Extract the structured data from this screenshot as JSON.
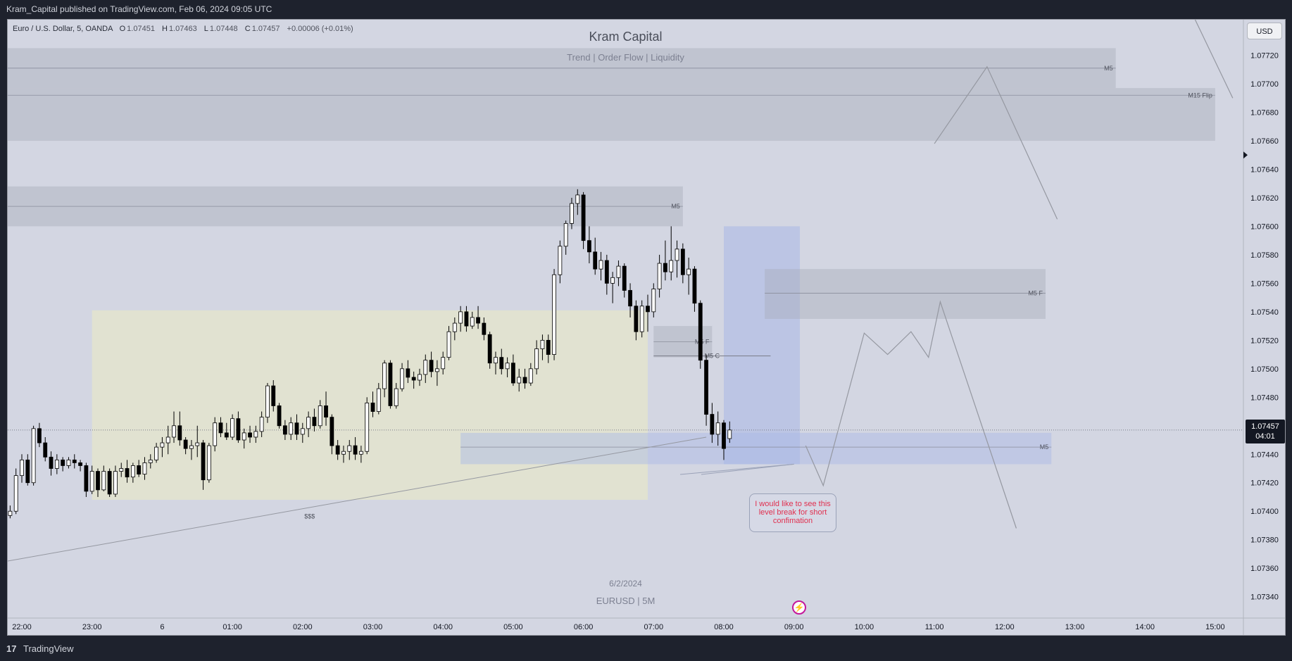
{
  "header": {
    "publisher_text": "Kram_Capital published on TradingView.com, Feb 06, 2024 09:05 UTC"
  },
  "legend": {
    "symbol": "Euro / U.S. Dollar, 5, OANDA",
    "open_label": "O",
    "open": "1.07451",
    "high_label": "H",
    "high": "1.07463",
    "low_label": "L",
    "low": "1.07448",
    "close_label": "C",
    "close": "1.07457",
    "change": "+0.00006 (+0.01%)"
  },
  "watermark": {
    "title": "Kram Capital",
    "subtitle": "Trend | Order Flow | Liquidity",
    "date": "6/2/2024",
    "symbol_tf": "EURUSD | 5M"
  },
  "price_axis": {
    "currency_button": "USD",
    "ticks": [
      "1.07720",
      "1.07700",
      "1.07680",
      "1.07660",
      "1.07640",
      "1.07620",
      "1.07600",
      "1.07580",
      "1.07560",
      "1.07540",
      "1.07520",
      "1.07500",
      "1.07480",
      "1.07460",
      "1.07440",
      "1.07420",
      "1.07400",
      "1.07380",
      "1.07360",
      "1.07340"
    ],
    "current_price": "1.07457",
    "countdown": "04:01"
  },
  "time_axis": {
    "ticks": [
      "22:00",
      "23:00",
      "6",
      "01:00",
      "02:00",
      "03:00",
      "04:00",
      "05:00",
      "06:00",
      "07:00",
      "08:00",
      "09:00",
      "10:00",
      "11:00",
      "12:00",
      "13:00",
      "14:00",
      "15:00"
    ]
  },
  "zone_labels": {
    "m5_top": "M5",
    "m15_flip": "M15 Flip",
    "m5_high": "M5",
    "m5_f_right": "M5 F",
    "m5_f_mid": "M5 F",
    "m5_c": "M5 C",
    "m5_low": "M5",
    "liquidity": "$$$"
  },
  "note": {
    "text": "I would like to see this level break for short confimation"
  },
  "footer": {
    "logo": "17",
    "brand": "TradingView"
  },
  "colors": {
    "chart_bg": "#d3d6e2",
    "zone_gray": "#a6a9b7",
    "zone_blue": "#a9b8e6",
    "range_box": "#e2e3cf",
    "candle_up": "#ffffff",
    "candle_down": "#000000",
    "note_text": "#e0304f"
  },
  "chart_data": {
    "type": "candlestick",
    "symbol": "EURUSD",
    "timeframe": "5",
    "series": [
      {
        "name": "EURUSD",
        "ohlc": [
          [
            1.0741,
            1.07425,
            1.07405,
            1.0742
          ],
          [
            1.0742,
            1.07432,
            1.07415,
            1.07428
          ],
          [
            1.07428,
            1.07438,
            1.0742,
            1.07433
          ],
          [
            1.07433,
            1.07436,
            1.07418,
            1.07422
          ],
          [
            1.07422,
            1.07424,
            1.07388,
            1.07392
          ],
          [
            1.07392,
            1.074,
            1.0739,
            1.07397
          ],
          [
            1.07397,
            1.07404,
            1.07395,
            1.074
          ],
          [
            1.074,
            1.0743,
            1.07398,
            1.07425
          ],
          [
            1.07425,
            1.0744,
            1.0742,
            1.07436
          ],
          [
            1.07436,
            1.0744,
            1.07418,
            1.0742
          ],
          [
            1.0742,
            1.0746,
            1.07418,
            1.07458
          ],
          [
            1.07458,
            1.07462,
            1.07445,
            1.07448
          ],
          [
            1.07448,
            1.07452,
            1.07435,
            1.07438
          ],
          [
            1.07438,
            1.07442,
            1.07425,
            1.0743
          ],
          [
            1.0743,
            1.0744,
            1.07426,
            1.07436
          ],
          [
            1.07436,
            1.07438,
            1.07428,
            1.07432
          ],
          [
            1.07432,
            1.07438,
            1.0743,
            1.07436
          ],
          [
            1.07436,
            1.0744,
            1.0743,
            1.07434
          ],
          [
            1.07434,
            1.07436,
            1.07428,
            1.07432
          ],
          [
            1.07432,
            1.07434,
            1.0741,
            1.07414
          ],
          [
            1.07414,
            1.07432,
            1.07412,
            1.07428
          ],
          [
            1.07428,
            1.0743,
            1.0741,
            1.07415
          ],
          [
            1.07415,
            1.07432,
            1.07414,
            1.07428
          ],
          [
            1.07428,
            1.0743,
            1.0741,
            1.07412
          ],
          [
            1.07412,
            1.07432,
            1.0741,
            1.07428
          ],
          [
            1.07428,
            1.07434,
            1.07424,
            1.0743
          ],
          [
            1.0743,
            1.07436,
            1.0742,
            1.07424
          ],
          [
            1.07424,
            1.07434,
            1.0742,
            1.07432
          ],
          [
            1.07432,
            1.07436,
            1.07424,
            1.07426
          ],
          [
            1.07426,
            1.07438,
            1.07422,
            1.07434
          ],
          [
            1.07434,
            1.0744,
            1.0743,
            1.07436
          ],
          [
            1.07436,
            1.07448,
            1.07434,
            1.07445
          ],
          [
            1.07445,
            1.07452,
            1.07438,
            1.07448
          ],
          [
            1.07448,
            1.0746,
            1.0744,
            1.07452
          ],
          [
            1.07452,
            1.0747,
            1.07448,
            1.0746
          ],
          [
            1.0746,
            1.0747,
            1.07446,
            1.0745
          ],
          [
            1.0745,
            1.07452,
            1.0744,
            1.07444
          ],
          [
            1.07444,
            1.0745,
            1.07436,
            1.07446
          ],
          [
            1.07446,
            1.0746,
            1.07438,
            1.07448
          ],
          [
            1.07448,
            1.0745,
            1.07415,
            1.07422
          ],
          [
            1.07422,
            1.07448,
            1.0742,
            1.07446
          ],
          [
            1.07446,
            1.07466,
            1.07442,
            1.07462
          ],
          [
            1.07462,
            1.07466,
            1.07452,
            1.07455
          ],
          [
            1.07455,
            1.07462,
            1.0745,
            1.07452
          ],
          [
            1.07452,
            1.07468,
            1.0745,
            1.07465
          ],
          [
            1.07465,
            1.0747,
            1.07448,
            1.0745
          ],
          [
            1.0745,
            1.07458,
            1.07444,
            1.07455
          ],
          [
            1.07455,
            1.0746,
            1.07448,
            1.07452
          ],
          [
            1.07452,
            1.0746,
            1.07448,
            1.07456
          ],
          [
            1.07456,
            1.0747,
            1.07452,
            1.07466
          ],
          [
            1.07466,
            1.0749,
            1.07462,
            1.07488
          ],
          [
            1.07488,
            1.07492,
            1.0747,
            1.07474
          ],
          [
            1.07474,
            1.07476,
            1.07458,
            1.0746
          ],
          [
            1.0746,
            1.07464,
            1.0745,
            1.07454
          ],
          [
            1.07454,
            1.07466,
            1.0745,
            1.07462
          ],
          [
            1.07462,
            1.07468,
            1.0745,
            1.07454
          ],
          [
            1.07454,
            1.07462,
            1.07448,
            1.07458
          ],
          [
            1.07458,
            1.0747,
            1.07452,
            1.07466
          ],
          [
            1.07466,
            1.07472,
            1.07456,
            1.0746
          ],
          [
            1.0746,
            1.07478,
            1.07458,
            1.07474
          ],
          [
            1.07474,
            1.07484,
            1.0746,
            1.07466
          ],
          [
            1.07466,
            1.07468,
            1.0744,
            1.07446
          ],
          [
            1.07446,
            1.0745,
            1.07436,
            1.0744
          ],
          [
            1.0744,
            1.07446,
            1.07434,
            1.07442
          ],
          [
            1.07442,
            1.0745,
            1.07436,
            1.07446
          ],
          [
            1.07446,
            1.07452,
            1.07436,
            1.0744
          ],
          [
            1.0744,
            1.07446,
            1.07434,
            1.07442
          ],
          [
            1.07442,
            1.0748,
            1.0744,
            1.07476
          ],
          [
            1.07476,
            1.07484,
            1.07466,
            1.0747
          ],
          [
            1.0747,
            1.0749,
            1.07468,
            1.07486
          ],
          [
            1.07486,
            1.07506,
            1.0748,
            1.07504
          ],
          [
            1.07504,
            1.07506,
            1.07472,
            1.07474
          ],
          [
            1.07474,
            1.0749,
            1.07472,
            1.07486
          ],
          [
            1.07486,
            1.07504,
            1.07484,
            1.075
          ],
          [
            1.075,
            1.07506,
            1.0749,
            1.07494
          ],
          [
            1.07494,
            1.07498,
            1.07486,
            1.07492
          ],
          [
            1.07492,
            1.075,
            1.07488,
            1.07496
          ],
          [
            1.07496,
            1.0751,
            1.0749,
            1.07506
          ],
          [
            1.07506,
            1.07512,
            1.07494,
            1.07498
          ],
          [
            1.07498,
            1.07506,
            1.07488,
            1.075
          ],
          [
            1.075,
            1.07512,
            1.07496,
            1.07508
          ],
          [
            1.07508,
            1.0753,
            1.07506,
            1.07526
          ],
          [
            1.07526,
            1.07536,
            1.0752,
            1.07532
          ],
          [
            1.07532,
            1.07544,
            1.07526,
            1.0754
          ],
          [
            1.0754,
            1.07544,
            1.07526,
            1.0753
          ],
          [
            1.0753,
            1.0754,
            1.07528,
            1.07536
          ],
          [
            1.07536,
            1.07544,
            1.07528,
            1.07532
          ],
          [
            1.07532,
            1.07536,
            1.0752,
            1.07524
          ],
          [
            1.07524,
            1.07526,
            1.075,
            1.07504
          ],
          [
            1.07504,
            1.07512,
            1.07496,
            1.07508
          ],
          [
            1.07508,
            1.07514,
            1.07496,
            1.075
          ],
          [
            1.075,
            1.07508,
            1.07494,
            1.07504
          ],
          [
            1.07504,
            1.0751,
            1.07488,
            1.0749
          ],
          [
            1.0749,
            1.075,
            1.07484,
            1.07494
          ],
          [
            1.07494,
            1.075,
            1.07486,
            1.0749
          ],
          [
            1.0749,
            1.07504,
            1.07488,
            1.075
          ],
          [
            1.075,
            1.0752,
            1.07496,
            1.07514
          ],
          [
            1.07514,
            1.07524,
            1.07506,
            1.0752
          ],
          [
            1.0752,
            1.07524,
            1.07504,
            1.0751
          ],
          [
            1.0751,
            1.0757,
            1.07506,
            1.07566
          ],
          [
            1.07566,
            1.0759,
            1.0756,
            1.07586
          ],
          [
            1.07586,
            1.07604,
            1.0758,
            1.07602
          ],
          [
            1.07602,
            1.0762,
            1.07598,
            1.07616
          ],
          [
            1.07616,
            1.07626,
            1.07608,
            1.07622
          ],
          [
            1.07622,
            1.07624,
            1.07584,
            1.0759
          ],
          [
            1.0759,
            1.076,
            1.07574,
            1.07582
          ],
          [
            1.07582,
            1.07592,
            1.07566,
            1.0757
          ],
          [
            1.0757,
            1.07582,
            1.07562,
            1.07576
          ],
          [
            1.07576,
            1.0758,
            1.07552,
            1.0756
          ],
          [
            1.0756,
            1.07568,
            1.07546,
            1.07564
          ],
          [
            1.07564,
            1.07576,
            1.07558,
            1.07572
          ],
          [
            1.07572,
            1.07574,
            1.0755,
            1.07555
          ],
          [
            1.07555,
            1.0756,
            1.07536,
            1.07544
          ],
          [
            1.07544,
            1.07548,
            1.0752,
            1.07526
          ],
          [
            1.07526,
            1.07548,
            1.07522,
            1.07544
          ],
          [
            1.07544,
            1.07552,
            1.07526,
            1.0754
          ],
          [
            1.0754,
            1.0756,
            1.07536,
            1.07556
          ],
          [
            1.07556,
            1.0758,
            1.0755,
            1.07574
          ],
          [
            1.07574,
            1.0759,
            1.07562,
            1.07568
          ],
          [
            1.07568,
            1.076,
            1.07562,
            1.07576
          ],
          [
            1.07576,
            1.0759,
            1.07564,
            1.07584
          ],
          [
            1.07584,
            1.07588,
            1.0756,
            1.07566
          ],
          [
            1.07566,
            1.07578,
            1.07552,
            1.0757
          ],
          [
            1.0757,
            1.07572,
            1.0754,
            1.07546
          ],
          [
            1.07546,
            1.07548,
            1.075,
            1.07506
          ],
          [
            1.07506,
            1.0751,
            1.0746,
            1.07468
          ],
          [
            1.07468,
            1.07476,
            1.07448,
            1.07454
          ],
          [
            1.07454,
            1.0747,
            1.07446,
            1.07462
          ],
          [
            1.07462,
            1.07464,
            1.07436,
            1.07444
          ],
          [
            1.07451,
            1.07463,
            1.07448,
            1.07457
          ]
        ]
      }
    ],
    "x_ticks": [
      "22:00",
      "23:00",
      "6",
      "01:00",
      "02:00",
      "03:00",
      "04:00",
      "05:00",
      "06:00",
      "07:00",
      "08:00",
      "09:00",
      "10:00",
      "11:00",
      "12:00",
      "13:00",
      "14:00",
      "15:00"
    ],
    "ylim": [
      1.07325,
      1.07745
    ],
    "y_ticks": [
      1.0772,
      1.077,
      1.0768,
      1.0766,
      1.0764,
      1.0762,
      1.076,
      1.0758,
      1.0756,
      1.0754,
      1.0752,
      1.075,
      1.0748,
      1.0746,
      1.0744,
      1.0742,
      1.074,
      1.0738,
      1.0736,
      1.0734
    ],
    "zones": [
      {
        "label": "M5",
        "from": "22:00",
        "to": "13:35",
        "top": 1.07725,
        "bottom": 1.07697,
        "mid": 1.07711
      },
      {
        "label": "M15 Flip",
        "from": "22:00",
        "to": "15:00",
        "top": 1.07697,
        "bottom": 1.0766,
        "mid": 1.07692
      },
      {
        "label": "M5",
        "from": "22:00",
        "to": "07:25",
        "top": 1.07628,
        "bottom": 1.076,
        "mid": 1.07614
      },
      {
        "label": "M5 F",
        "from": "08:35",
        "to": "12:35",
        "top": 1.0757,
        "bottom": 1.07535,
        "mid": 1.07553
      },
      {
        "label": "M5 F",
        "from": "07:00",
        "to": "07:50",
        "top": 1.0753,
        "bottom": 1.07508,
        "mid": 1.07519
      },
      {
        "label": "M5 C",
        "from": "07:00",
        "to": "08:40",
        "top": 1.07509,
        "bottom": 1.07509,
        "mid": 1.07509
      },
      {
        "label": "M5",
        "from": "04:15",
        "to": "12:40",
        "top": 1.07455,
        "bottom": 1.07433,
        "mid": 1.07445
      },
      {
        "label": "$$$",
        "from": "22:00",
        "to": "07:45",
        "top": 1.07425,
        "bottom": 1.07365,
        "mid": 1.07397
      }
    ],
    "range_box": {
      "from": "23:00",
      "to": "06:55",
      "top": 1.07541,
      "bottom": 1.07408
    },
    "highlight_box": {
      "from": "08:00",
      "to": "09:05",
      "top": 1.076,
      "bottom": 1.07433
    }
  }
}
